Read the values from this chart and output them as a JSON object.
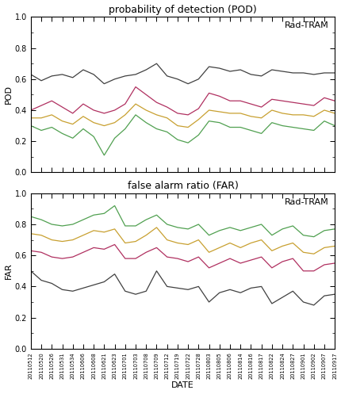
{
  "title_pod": "probability of detection (POD)",
  "title_far": "false alarm ratio (FAR)",
  "xlabel": "DATE",
  "ylabel_pod": "POD",
  "ylabel_far": "FAR",
  "label_rad_tram": "Rad-TRAM",
  "dates": [
    "20110512",
    "20110520",
    "20110526",
    "20110531",
    "20110534",
    "20110606",
    "20110608",
    "20110621",
    "20110623",
    "20110701",
    "20110703",
    "20110708",
    "20110709",
    "20110712",
    "20110719",
    "20110722",
    "20110728",
    "20110803",
    "20110805",
    "20110806",
    "20110814",
    "20110816",
    "20110817",
    "20110822",
    "20110824",
    "20110827",
    "20110901",
    "20110902",
    "20110907",
    "20110917"
  ],
  "pod_black": [
    0.63,
    0.59,
    0.62,
    0.63,
    0.61,
    0.66,
    0.63,
    0.57,
    0.6,
    0.62,
    0.63,
    0.66,
    0.7,
    0.62,
    0.6,
    0.57,
    0.6,
    0.68,
    0.67,
    0.65,
    0.66,
    0.63,
    0.62,
    0.66,
    0.65,
    0.64,
    0.64,
    0.63,
    0.64,
    0.64
  ],
  "pod_red": [
    0.4,
    0.43,
    0.46,
    0.42,
    0.38,
    0.44,
    0.4,
    0.38,
    0.4,
    0.44,
    0.55,
    0.5,
    0.45,
    0.42,
    0.38,
    0.37,
    0.41,
    0.51,
    0.49,
    0.46,
    0.46,
    0.44,
    0.42,
    0.47,
    0.46,
    0.45,
    0.44,
    0.43,
    0.48,
    0.46
  ],
  "pod_orange": [
    0.35,
    0.35,
    0.37,
    0.33,
    0.31,
    0.36,
    0.32,
    0.3,
    0.32,
    0.37,
    0.44,
    0.4,
    0.37,
    0.35,
    0.3,
    0.29,
    0.34,
    0.4,
    0.39,
    0.38,
    0.38,
    0.36,
    0.35,
    0.4,
    0.38,
    0.37,
    0.37,
    0.36,
    0.4,
    0.38
  ],
  "pod_green": [
    0.3,
    0.27,
    0.29,
    0.25,
    0.22,
    0.28,
    0.23,
    0.11,
    0.22,
    0.28,
    0.37,
    0.32,
    0.28,
    0.26,
    0.21,
    0.19,
    0.24,
    0.33,
    0.32,
    0.29,
    0.29,
    0.27,
    0.25,
    0.32,
    0.3,
    0.29,
    0.28,
    0.27,
    0.33,
    0.3
  ],
  "far_black": [
    0.5,
    0.44,
    0.42,
    0.38,
    0.37,
    0.39,
    0.41,
    0.43,
    0.48,
    0.37,
    0.35,
    0.37,
    0.5,
    0.4,
    0.39,
    0.38,
    0.4,
    0.3,
    0.36,
    0.38,
    0.36,
    0.39,
    0.4,
    0.29,
    0.33,
    0.37,
    0.3,
    0.28,
    0.34,
    0.35
  ],
  "far_red": [
    0.63,
    0.62,
    0.59,
    0.58,
    0.59,
    0.62,
    0.65,
    0.64,
    0.67,
    0.58,
    0.58,
    0.62,
    0.65,
    0.59,
    0.58,
    0.56,
    0.59,
    0.52,
    0.55,
    0.58,
    0.55,
    0.57,
    0.59,
    0.52,
    0.56,
    0.58,
    0.5,
    0.5,
    0.54,
    0.55
  ],
  "far_orange": [
    0.74,
    0.73,
    0.7,
    0.69,
    0.7,
    0.73,
    0.76,
    0.75,
    0.77,
    0.68,
    0.69,
    0.73,
    0.78,
    0.7,
    0.68,
    0.67,
    0.7,
    0.62,
    0.65,
    0.68,
    0.65,
    0.68,
    0.7,
    0.63,
    0.66,
    0.68,
    0.62,
    0.61,
    0.65,
    0.66
  ],
  "far_green": [
    0.85,
    0.83,
    0.8,
    0.79,
    0.8,
    0.83,
    0.86,
    0.87,
    0.92,
    0.79,
    0.79,
    0.83,
    0.86,
    0.8,
    0.78,
    0.77,
    0.8,
    0.73,
    0.76,
    0.78,
    0.76,
    0.78,
    0.8,
    0.73,
    0.77,
    0.79,
    0.73,
    0.72,
    0.76,
    0.77
  ],
  "color_black": "#404040",
  "color_red": "#b03060",
  "color_orange": "#c8a030",
  "color_green": "#50a050",
  "bg_color": "#ffffff",
  "linewidth": 0.9
}
